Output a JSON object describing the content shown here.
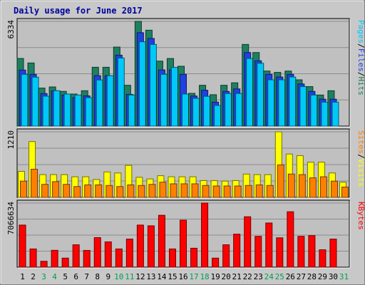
{
  "chart_data": [
    {
      "type": "bar",
      "title": "Daily usage for June 2017",
      "panel": "hits-files-pages",
      "ymax_label": "6334",
      "ylim": [
        0,
        6334
      ],
      "right_label": [
        {
          "text": "Pages",
          "color": "#00c8f8"
        },
        {
          "text": "/",
          "color": "#000000"
        },
        {
          "text": "Files",
          "color": "#2040e0"
        },
        {
          "text": "/",
          "color": "#000000"
        },
        {
          "text": "Hits",
          "color": "#1e8060"
        }
      ],
      "categories": [
        "1",
        "2",
        "3",
        "4",
        "5",
        "6",
        "7",
        "8",
        "9",
        "10",
        "11",
        "12",
        "13",
        "14",
        "15",
        "16",
        "17",
        "18",
        "19",
        "20",
        "21",
        "22",
        "23",
        "24",
        "25",
        "26",
        "27",
        "28",
        "29",
        "30",
        "31"
      ],
      "weekend_days": [
        3,
        4,
        10,
        11,
        17,
        18,
        24,
        25,
        31
      ],
      "series": [
        {
          "name": "Hits",
          "color": "#1e8060",
          "values": [
            4090,
            3820,
            2300,
            2370,
            2100,
            1940,
            2140,
            3560,
            3560,
            4780,
            2470,
            6334,
            5800,
            3930,
            4090,
            3620,
            1980,
            2470,
            1900,
            2470,
            2620,
            4940,
            4450,
            3330,
            3250,
            3330,
            2800,
            2390,
            1880,
            2140,
            0
          ]
        },
        {
          "name": "Files",
          "color": "#2040e0",
          "values": [
            3390,
            3130,
            1970,
            2140,
            1880,
            1720,
            1830,
            3050,
            3050,
            4290,
            1920,
            5650,
            5300,
            3400,
            3400,
            3130,
            1820,
            2170,
            1450,
            2100,
            2250,
            4450,
            3950,
            3130,
            2970,
            3130,
            2550,
            2100,
            1630,
            1630,
            0
          ]
        },
        {
          "name": "Pages",
          "color": "#00c8f8",
          "values": [
            3130,
            2960,
            1810,
            2140,
            1940,
            1880,
            1720,
            2790,
            3050,
            4120,
            1880,
            5100,
            4940,
            3130,
            3550,
            1940,
            1680,
            1800,
            1250,
            1970,
            1970,
            4090,
            3800,
            2800,
            2800,
            2970,
            2390,
            1880,
            1450,
            1450,
            0
          ]
        }
      ]
    },
    {
      "type": "bar",
      "panel": "visits-sites",
      "ymax_label": "1210",
      "ylim": [
        0,
        1210
      ],
      "right_label": [
        {
          "text": "Sites",
          "color": "#ff8000"
        },
        {
          "text": "/",
          "color": "#000000"
        },
        {
          "text": "Visits",
          "color": "#ffff00"
        }
      ],
      "series": [
        {
          "name": "Visits",
          "color": "#ffff00",
          "values": [
            480,
            1030,
            420,
            420,
            420,
            380,
            380,
            330,
            470,
            450,
            590,
            370,
            340,
            400,
            380,
            380,
            380,
            310,
            310,
            300,
            310,
            430,
            420,
            420,
            1210,
            800,
            770,
            650,
            650,
            450,
            280
          ]
        },
        {
          "name": "Sites",
          "color": "#ff8000",
          "values": [
            300,
            520,
            240,
            290,
            240,
            200,
            230,
            230,
            220,
            200,
            230,
            220,
            240,
            280,
            250,
            250,
            250,
            220,
            210,
            210,
            210,
            220,
            230,
            220,
            600,
            430,
            420,
            360,
            380,
            300,
            190
          ]
        }
      ]
    },
    {
      "type": "bar",
      "panel": "kbytes",
      "ymax_label": "7066634",
      "ylim": [
        0,
        7066634
      ],
      "right_label": [
        {
          "text": "KBytes",
          "color": "#ff0000"
        }
      ],
      "series": [
        {
          "name": "KBytes",
          "color": "#ff0000",
          "values": [
            4640000,
            2010000,
            650000,
            1860000,
            1000000,
            2470000,
            1850000,
            3260000,
            2790000,
            2010000,
            3100000,
            4640000,
            4560000,
            5720000,
            2010000,
            5180000,
            2090000,
            7066634,
            1000000,
            2470000,
            3640000,
            5560000,
            3400000,
            4870000,
            3240000,
            6110000,
            3400000,
            3480000,
            1920000,
            3100000,
            0
          ]
        }
      ]
    }
  ]
}
